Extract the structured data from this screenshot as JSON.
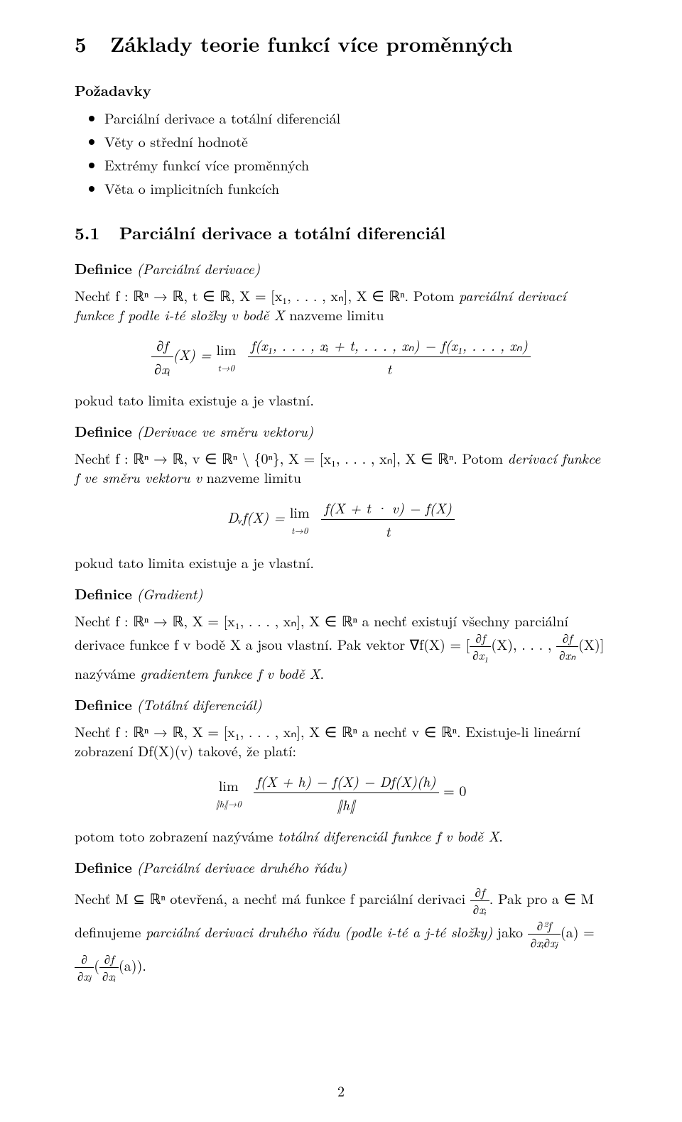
{
  "section": {
    "number": "5",
    "title": "Základy teorie funkcí více proměnných"
  },
  "requirements": {
    "heading": "Požadavky",
    "items": [
      "Parciální derivace a totální diferenciál",
      "Věty o střední hodnotě",
      "Extrémy funkcí více proměnných",
      "Věta o implicitních funkcích"
    ]
  },
  "subsection": {
    "number": "5.1",
    "title": "Parciální derivace a totální diferenciál"
  },
  "def1": {
    "label": "Definice",
    "name": "(Parciální derivace)",
    "text1": "Nechť f : ℝⁿ → ℝ, t ∈ ℝ, X = [x₁, . . . , xₙ], X ∈ ℝⁿ. Potom ",
    "term": "parciální derivací funkce f podle i-té složky v bodě X",
    "text2": " nazveme limitu",
    "formula_lhs_num": "∂f",
    "formula_lhs_den": "∂xᵢ",
    "formula_lhs_arg": "(X) = ",
    "lim": "lim",
    "lim_sub": "t→0",
    "rhs_num": "f(x₁, . . . , xᵢ + t, . . . , xₙ) − f(x₁, . . . , xₙ)",
    "rhs_den": "t",
    "after": "pokud tato limita existuje a je vlastní."
  },
  "def2": {
    "label": "Definice",
    "name": "(Derivace ve směru vektoru)",
    "text1": "Nechť f : ℝⁿ → ℝ, v ∈ ℝⁿ \\ {0ⁿ}, X = [x₁, . . . , xₙ], X ∈ ℝⁿ. Potom ",
    "term": "derivací funkce f ve směru vektoru v",
    "text2": " nazveme limitu",
    "formula_lhs": "Dᵥf(X) = ",
    "lim": "lim",
    "lim_sub": "t→0",
    "rhs_num": "f(X + t · v) − f(X)",
    "rhs_den": "t",
    "after": "pokud tato limita existuje a je vlastní."
  },
  "def3": {
    "label": "Definice",
    "name": "(Gradient)",
    "text1": "Nechť f : ℝⁿ → ℝ, X = [x₁, . . . , xₙ], X ∈ ℝⁿ a nechť existují všechny parciální derivace funkce f v bodě X a jsou vlastní. Pak vektor ∇f(X) = [",
    "grad1_num": "∂f",
    "grad1_den": "∂x₁",
    "grad1_arg": "(X), . . . , ",
    "grad2_num": "∂f",
    "grad2_den": "∂xₙ",
    "grad2_arg": "(X)]",
    "text2": " nazýváme ",
    "term": "gradientem funkce f v bodě X",
    "text3": "."
  },
  "def4": {
    "label": "Definice",
    "name": "(Totální diferenciál)",
    "text1": "Nechť f : ℝⁿ → ℝ, X = [x₁, . . . , xₙ], X ∈ ℝⁿ a nechť v ∈ ℝⁿ. Existuje-li lineární zobrazení Df(X)(v) takové, že platí:",
    "lim": "lim",
    "lim_sub": "‖h‖→0",
    "rhs_num": "f(X + h) − f(X) − Df(X)(h)",
    "rhs_den": "‖h‖",
    "eq": " = 0",
    "after1": "potom toto zobrazení nazýváme ",
    "term": "totální diferenciál funkce f v bodě X",
    "after2": "."
  },
  "def5": {
    "label": "Definice",
    "name": "(Parciální derivace druhého řádu)",
    "text1": "Nechť M ⊆ ℝⁿ otevřená, a nechť má funkce f parciální derivaci ",
    "pd_num": "∂f",
    "pd_den": "∂xᵢ",
    "text2": ". Pak pro a ∈ M definujeme ",
    "term": "parciální derivaci druhého řádu (podle i-té a j-té složky)",
    "text3": " jako ",
    "lhs_num": "∂²f",
    "lhs_den": "∂xᵢ∂xⱼ",
    "lhs_arg": "(a) = ",
    "mid_num": "∂",
    "mid_den": "∂xⱼ",
    "rhs_open": "(",
    "rhs_num": "∂f",
    "rhs_den": "∂xᵢ",
    "rhs_close": "(a)).",
    "after": ""
  },
  "pagenum": "2"
}
